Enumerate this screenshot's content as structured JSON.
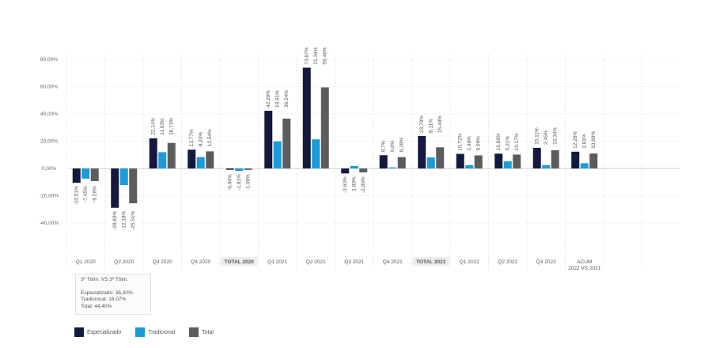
{
  "chart_data": {
    "type": "bar",
    "ylim": [
      -40,
      80
    ],
    "y_ticks": [
      -40,
      -20,
      0,
      20,
      40,
      60,
      80
    ],
    "y_tick_labels": [
      "-40,00%",
      "-20,00%",
      "0,00%",
      "20,00%",
      "40,00%",
      "60,00%",
      "80,00%"
    ],
    "categories": [
      "Q1 2020",
      "Q2 2020",
      "Q3 2020",
      "Q4 2020",
      "TOTAL 2020",
      "Q1 2021",
      "Q2 2021",
      "Q3 2021",
      "Q4 2021",
      "TOTAL 2021",
      "Q1 2022",
      "Q2 2022",
      "Q3 2022",
      "ACUM 2022 VS 2021"
    ],
    "highlighted_categories": [
      "TOTAL 2020",
      "TOTAL 2021"
    ],
    "series": [
      {
        "name": "Especializado",
        "color": "#15193f",
        "values": [
          -10.51,
          -28.83,
          22.14,
          13.77,
          -0.94,
          42.28,
          73.87,
          -3.63,
          9.7,
          23.79,
          10.72,
          10.86,
          15.11,
          12.28
        ],
        "labels": [
          "-10,51%",
          "-28,83%",
          "22,14%",
          "13,77%",
          "-0,94%",
          "42,28%",
          "73,87%",
          "-3,63%",
          "9,7%",
          "23,79%",
          "10,72%",
          "10,86%",
          "15,11%",
          "12,28%"
        ]
      },
      {
        "name": "Tradicional",
        "color": "#1b9bd7",
        "values": [
          -7.45,
          -12.18,
          11.93,
          8.33,
          -1.81,
          19.91,
          21.34,
          1.83,
          0.8,
          8.11,
          2.46,
          5.31,
          2.45,
          3.81
        ],
        "labels": [
          "-7,45%",
          "-12,18%",
          "11,93%",
          "8,33%",
          "-1,81%",
          "19,91%",
          "21,34%",
          "1,83%",
          "0,8%",
          "8,11%",
          "2,46%",
          "5,31%",
          "2,45%",
          "3,81%"
        ]
      },
      {
        "name": "Total",
        "color": "#5c5c5c",
        "values": [
          -9.26,
          -25.51,
          18.73,
          12.54,
          -1.06,
          36.54,
          59.46,
          -2.89,
          8.28,
          15.49,
          9.59,
          10.17,
          13.34,
          10.99
        ],
        "labels": [
          "-9,26%",
          "-25,51%",
          "18,73%",
          "12,54%",
          "-1,06%",
          "36,54%",
          "59,46%",
          "-2,89%",
          "8,28%",
          "15,49%",
          "9,59%",
          "10,17%",
          "13,34%",
          "10,99%"
        ]
      }
    ]
  },
  "note": {
    "title": "3º Tbim. VS 3º Tbim.",
    "line1": "Especializado: 36,30%",
    "line2": "Tradicional: 16,07%",
    "line3": "Total: 44,40%"
  },
  "legend": {
    "especializado": "Especializado",
    "tradicional": "Tradicional",
    "total": "Total"
  }
}
